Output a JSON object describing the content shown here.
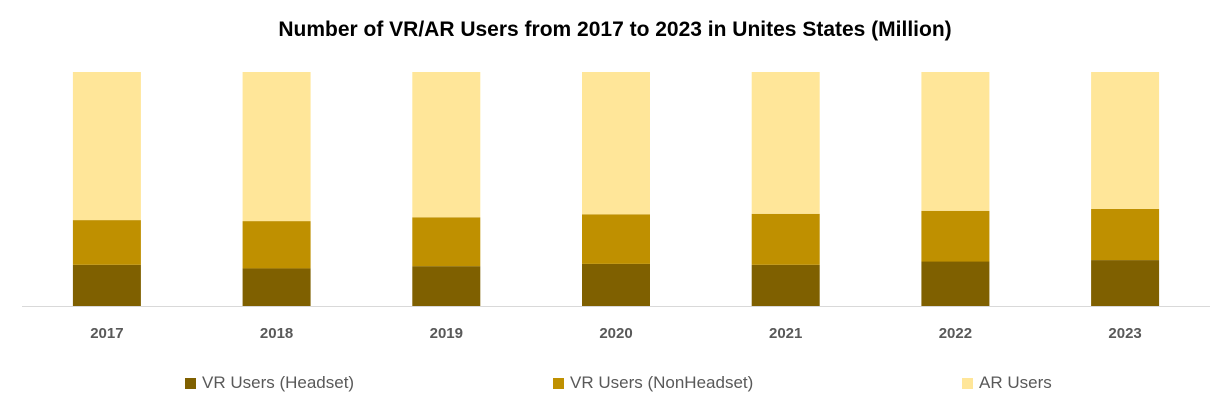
{
  "chart_data": {
    "type": "bar",
    "stacked": true,
    "title": "Number of VR/AR Users from 2017 to 2023 in Unites States (Million)",
    "categories": [
      "2017",
      "2018",
      "2019",
      "2020",
      "2021",
      "2022",
      "2023"
    ],
    "series": [
      {
        "name": "VR Users (Headset)",
        "color": "#7F6000",
        "values": [
          17.6,
          16.1,
          17.0,
          18.0,
          17.6,
          19.0,
          19.6
        ]
      },
      {
        "name": "VR Users (NonHeadset)",
        "color": "#BF9000",
        "values": [
          19.1,
          20.2,
          20.9,
          21.2,
          21.8,
          21.7,
          21.9
        ]
      },
      {
        "name": "AR Users",
        "color": "#FFE699",
        "values": [
          63.3,
          63.7,
          62.1,
          60.8,
          60.6,
          59.3,
          58.5
        ]
      }
    ],
    "ylim": [
      0,
      100
    ],
    "grid": false,
    "legend_position": "bottom"
  }
}
